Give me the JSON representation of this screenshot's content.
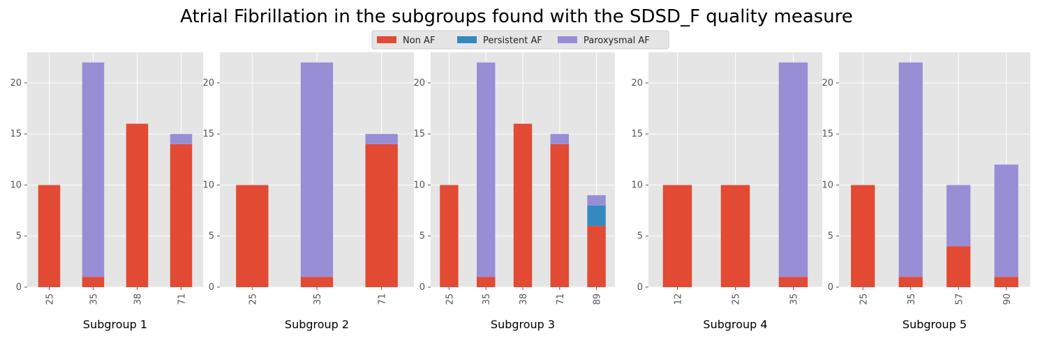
{
  "chart_data": {
    "type": "bar",
    "stacked": true,
    "title": "Atrial Fibrillation in the subgroups found with the SDSD_F quality measure",
    "legend": {
      "placement": "top-center",
      "entries": [
        "Non AF",
        "Persistent AF",
        "Paroxysmal AF"
      ]
    },
    "series_colors": [
      "#E24A33",
      "#348ABD",
      "#988ED5"
    ],
    "grid": true,
    "ylim": [
      0,
      23
    ],
    "yticks": [
      0,
      5,
      10,
      15,
      20
    ],
    "subplots": [
      {
        "xlabel": "Subgroup 1",
        "categories": [
          "25",
          "35",
          "38",
          "71"
        ],
        "series": [
          {
            "name": "Non AF",
            "values": [
              10,
              1,
              16,
              14
            ]
          },
          {
            "name": "Persistent AF",
            "values": [
              0,
              0,
              0,
              0
            ]
          },
          {
            "name": "Paroxysmal AF",
            "values": [
              0,
              21,
              0,
              1
            ]
          }
        ]
      },
      {
        "xlabel": "Subgroup 2",
        "categories": [
          "25",
          "35",
          "71"
        ],
        "series": [
          {
            "name": "Non AF",
            "values": [
              10,
              1,
              14
            ]
          },
          {
            "name": "Persistent AF",
            "values": [
              0,
              0,
              0
            ]
          },
          {
            "name": "Paroxysmal AF",
            "values": [
              0,
              21,
              1
            ]
          }
        ]
      },
      {
        "xlabel": "Subgroup 3",
        "categories": [
          "25",
          "35",
          "38",
          "71",
          "89"
        ],
        "series": [
          {
            "name": "Non AF",
            "values": [
              10,
              1,
              16,
              14,
              6
            ]
          },
          {
            "name": "Persistent AF",
            "values": [
              0,
              0,
              0,
              0,
              2
            ]
          },
          {
            "name": "Paroxysmal AF",
            "values": [
              0,
              21,
              0,
              1,
              1
            ]
          }
        ]
      },
      {
        "xlabel": "Subgroup 4",
        "categories": [
          "12",
          "25",
          "35"
        ],
        "series": [
          {
            "name": "Non AF",
            "values": [
              10,
              10,
              1
            ]
          },
          {
            "name": "Persistent AF",
            "values": [
              0,
              0,
              0
            ]
          },
          {
            "name": "Paroxysmal AF",
            "values": [
              0,
              0,
              21
            ]
          }
        ]
      },
      {
        "xlabel": "Subgroup 5",
        "categories": [
          "25",
          "35",
          "57",
          "90"
        ],
        "series": [
          {
            "name": "Non AF",
            "values": [
              10,
              1,
              4,
              1
            ]
          },
          {
            "name": "Persistent AF",
            "values": [
              0,
              0,
              0,
              0
            ]
          },
          {
            "name": "Paroxysmal AF",
            "values": [
              0,
              21,
              6,
              11
            ]
          }
        ]
      }
    ]
  }
}
